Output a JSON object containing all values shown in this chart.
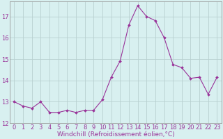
{
  "x": [
    0,
    1,
    2,
    3,
    4,
    5,
    6,
    7,
    8,
    9,
    10,
    11,
    12,
    13,
    14,
    15,
    16,
    17,
    18,
    19,
    20,
    21,
    22,
    23
  ],
  "y": [
    13.0,
    12.8,
    12.7,
    13.0,
    12.5,
    12.5,
    12.6,
    12.5,
    12.6,
    12.6,
    13.1,
    14.15,
    14.9,
    16.6,
    17.5,
    17.0,
    16.8,
    16.0,
    14.75,
    14.6,
    14.1,
    14.15,
    13.35,
    14.15
  ],
  "line_color": "#993399",
  "marker": "D",
  "marker_size": 2.0,
  "bg_color": "#d8f0f0",
  "grid_color": "#b8d0d0",
  "xlabel": "Windchill (Refroidissement éolien,°C)",
  "xlabel_color": "#993399",
  "xlabel_fontsize": 6.5,
  "tick_color": "#993399",
  "tick_fontsize": 6.0,
  "ylim": [
    12,
    17.7
  ],
  "yticks": [
    12,
    13,
    14,
    15,
    16,
    17
  ],
  "xlim": [
    -0.5,
    23.5
  ],
  "xticks": [
    0,
    1,
    2,
    3,
    4,
    5,
    6,
    7,
    8,
    9,
    10,
    11,
    12,
    13,
    14,
    15,
    16,
    17,
    18,
    19,
    20,
    21,
    22,
    23
  ]
}
